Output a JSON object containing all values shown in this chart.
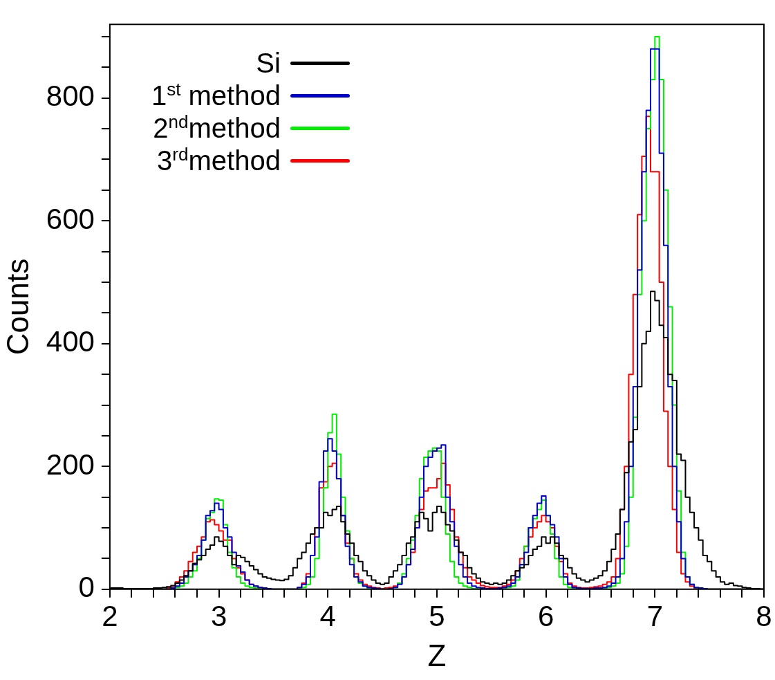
{
  "chart_data": {
    "type": "histogram",
    "xlabel": "Z",
    "ylabel": "Counts",
    "legend": "top left",
    "xlim": [
      2,
      8
    ],
    "ylim": [
      0,
      920
    ],
    "xticks": [
      2,
      {
        "value": 2.2,
        "label": null
      },
      {
        "value": 2.4,
        "label": null
      },
      {
        "value": 2.6,
        "label": null
      },
      {
        "value": 2.8,
        "label": null
      },
      3,
      {
        "value": 3.2,
        "label": null
      },
      {
        "value": 3.4,
        "label": null
      },
      {
        "value": 3.6,
        "label": null
      },
      {
        "value": 3.8,
        "label": null
      },
      4,
      {
        "value": 4.2,
        "label": null
      },
      {
        "value": 4.4,
        "label": null
      },
      {
        "value": 4.6,
        "label": null
      },
      {
        "value": 4.8,
        "label": null
      },
      5,
      {
        "value": 5.2,
        "label": null
      },
      {
        "value": 5.4,
        "label": null
      },
      {
        "value": 5.6,
        "label": null
      },
      {
        "value": 5.8,
        "label": null
      },
      6,
      {
        "value": 6.2,
        "label": null
      },
      {
        "value": 6.4,
        "label": null
      },
      {
        "value": 6.6,
        "label": null
      },
      {
        "value": 6.8,
        "label": null
      },
      7,
      {
        "value": 7.2,
        "label": null
      },
      {
        "value": 7.4,
        "label": null
      },
      {
        "value": 7.6,
        "label": null
      },
      {
        "value": 7.8,
        "label": null
      },
      8
    ],
    "yticks": [
      0,
      {
        "value": 50,
        "label": null
      },
      {
        "value": 100,
        "label": null
      },
      {
        "value": 150,
        "label": null
      },
      200,
      {
        "value": 250,
        "label": null
      },
      {
        "value": 300,
        "label": null
      },
      {
        "value": 350,
        "label": null
      },
      400,
      {
        "value": 450,
        "label": null
      },
      {
        "value": 500,
        "label": null
      },
      {
        "value": 550,
        "label": null
      },
      600,
      {
        "value": 650,
        "label": null
      },
      {
        "value": 700,
        "label": null
      },
      {
        "value": 750,
        "label": null
      },
      800,
      {
        "value": 850,
        "label": null
      },
      {
        "value": 900,
        "label": null
      }
    ],
    "bins": [
      2,
      2.04,
      2.08,
      2.12,
      2.16,
      2.2,
      2.24,
      2.28,
      2.32,
      2.36,
      2.4,
      2.44,
      2.48,
      2.52,
      2.56,
      2.6,
      2.64,
      2.68,
      2.72,
      2.76,
      2.8,
      2.84,
      2.88,
      2.92,
      2.96,
      3,
      3.04,
      3.08,
      3.12,
      3.16,
      3.2,
      3.24,
      3.28,
      3.32,
      3.36,
      3.4,
      3.44,
      3.48,
      3.52,
      3.56,
      3.6,
      3.64,
      3.68,
      3.72,
      3.76,
      3.8,
      3.84,
      3.88,
      3.92,
      3.96,
      4,
      4.04,
      4.08,
      4.12,
      4.16,
      4.2,
      4.24,
      4.28,
      4.32,
      4.36,
      4.4,
      4.44,
      4.48,
      4.52,
      4.56,
      4.6,
      4.64,
      4.68,
      4.72,
      4.76,
      4.8,
      4.84,
      4.88,
      4.92,
      4.96,
      5,
      5.04,
      5.08,
      5.12,
      5.16,
      5.2,
      5.24,
      5.28,
      5.32,
      5.36,
      5.4,
      5.44,
      5.48,
      5.52,
      5.56,
      5.6,
      5.64,
      5.68,
      5.72,
      5.76,
      5.8,
      5.84,
      5.88,
      5.92,
      5.96,
      6,
      6.04,
      6.08,
      6.12,
      6.16,
      6.2,
      6.24,
      6.28,
      6.32,
      6.36,
      6.4,
      6.44,
      6.48,
      6.52,
      6.56,
      6.6,
      6.64,
      6.68,
      6.72,
      6.76,
      6.8,
      6.84,
      6.88,
      6.92,
      6.96,
      7,
      7.04,
      7.08,
      7.12,
      7.16,
      7.2,
      7.24,
      7.28,
      7.32,
      7.36,
      7.4,
      7.44,
      7.48,
      7.52,
      7.56,
      7.6,
      7.64,
      7.68,
      7.72,
      7.76,
      7.8,
      7.84,
      7.88,
      7.92,
      7.96,
      8
    ],
    "series": [
      {
        "name": "Si",
        "color": "#000000",
        "values": [
          2,
          2,
          2,
          1,
          1,
          1,
          1,
          1,
          1,
          1,
          2,
          2,
          3,
          4,
          6,
          10,
          15,
          22,
          30,
          42,
          48,
          55,
          65,
          72,
          85,
          78,
          70,
          55,
          40,
          55,
          52,
          45,
          38,
          32,
          25,
          20,
          18,
          16,
          15,
          14,
          16,
          22,
          35,
          50,
          60,
          75,
          90,
          100,
          100,
          125,
          120,
          130,
          135,
          110,
          90,
          75,
          55,
          45,
          30,
          22,
          15,
          10,
          8,
          10,
          20,
          30,
          40,
          55,
          75,
          85,
          110,
          125,
          115,
          95,
          125,
          135,
          125,
          105,
          95,
          80,
          60,
          55,
          35,
          25,
          18,
          12,
          10,
          8,
          10,
          8,
          10,
          15,
          22,
          30,
          35,
          40,
          55,
          65,
          70,
          85,
          75,
          85,
          75,
          55,
          50,
          35,
          25,
          18,
          15,
          12,
          15,
          18,
          22,
          30,
          45,
          65,
          90,
          130,
          190,
          240,
          260,
          330,
          400,
          420,
          485,
          470,
          430,
          410,
          350,
          340,
          220,
          210,
          150,
          125,
          100,
          80,
          55,
          45,
          30,
          20,
          12,
          8,
          10,
          6,
          5,
          3,
          2,
          1,
          1,
          0
        ]
      },
      {
        "name": "1$^{st}$ method",
        "color": "#0000cc",
        "values": [
          0,
          0,
          0,
          0,
          0,
          0,
          0,
          0,
          0,
          0,
          0,
          0,
          0,
          0,
          2,
          5,
          10,
          20,
          30,
          40,
          55,
          80,
          120,
          128,
          140,
          130,
          100,
          85,
          60,
          38,
          28,
          15,
          8,
          5,
          3,
          2,
          1,
          0,
          0,
          0,
          0,
          0,
          0,
          3,
          8,
          20,
          55,
          85,
          175,
          225,
          245,
          225,
          180,
          120,
          70,
          40,
          20,
          12,
          5,
          3,
          2,
          1,
          0,
          0,
          1,
          3,
          8,
          20,
          40,
          65,
          100,
          150,
          200,
          215,
          225,
          230,
          235,
          150,
          110,
          70,
          40,
          20,
          10,
          5,
          3,
          2,
          1,
          1,
          1,
          2,
          3,
          5,
          10,
          20,
          40,
          60,
          100,
          120,
          140,
          152,
          120,
          105,
          85,
          50,
          20,
          8,
          3,
          2,
          1,
          1,
          1,
          2,
          2,
          3,
          5,
          10,
          20,
          50,
          110,
          200,
          330,
          520,
          680,
          780,
          880,
          880,
          710,
          560,
          330,
          200,
          110,
          50,
          20,
          8,
          3,
          2,
          1,
          0,
          0,
          0,
          0,
          0,
          0,
          0,
          0,
          0,
          0,
          0,
          0,
          0
        ]
      },
      {
        "name": "2$^{nd}$method",
        "color": "#00ee00",
        "values": [
          0,
          0,
          0,
          0,
          0,
          0,
          0,
          0,
          0,
          0,
          0,
          0,
          0,
          0,
          1,
          3,
          5,
          10,
          20,
          30,
          50,
          80,
          115,
          125,
          147,
          145,
          105,
          60,
          35,
          20,
          10,
          5,
          3,
          2,
          1,
          1,
          0,
          0,
          0,
          0,
          0,
          0,
          0,
          1,
          3,
          8,
          20,
          50,
          100,
          165,
          255,
          285,
          220,
          150,
          95,
          50,
          20,
          10,
          5,
          2,
          1,
          0,
          0,
          0,
          1,
          3,
          10,
          25,
          50,
          80,
          120,
          180,
          215,
          225,
          230,
          225,
          150,
          90,
          45,
          20,
          10,
          5,
          3,
          1,
          1,
          0,
          0,
          0,
          0,
          1,
          2,
          3,
          5,
          15,
          40,
          70,
          100,
          115,
          130,
          145,
          120,
          90,
          50,
          20,
          8,
          3,
          2,
          1,
          1,
          0,
          0,
          1,
          1,
          2,
          3,
          5,
          10,
          25,
          70,
          150,
          280,
          480,
          600,
          750,
          830,
          900,
          830,
          650,
          460,
          300,
          160,
          60,
          20,
          8,
          3,
          1,
          0,
          0,
          0,
          0,
          0,
          0,
          0,
          0,
          0,
          0,
          0,
          0,
          0,
          0
        ]
      },
      {
        "name": "3$^{rd}$method",
        "color": "#ff0000",
        "values": [
          0,
          0,
          0,
          0,
          0,
          0,
          0,
          0,
          0,
          0,
          0,
          0,
          0,
          2,
          5,
          12,
          20,
          30,
          45,
          60,
          70,
          85,
          110,
          113,
          105,
          95,
          80,
          80,
          50,
          35,
          25,
          15,
          8,
          5,
          3,
          2,
          1,
          0,
          0,
          0,
          0,
          0,
          0,
          3,
          10,
          25,
          55,
          100,
          165,
          175,
          200,
          205,
          180,
          120,
          75,
          50,
          25,
          15,
          8,
          5,
          3,
          2,
          1,
          2,
          3,
          5,
          10,
          20,
          40,
          60,
          100,
          130,
          160,
          165,
          165,
          180,
          205,
          170,
          130,
          85,
          60,
          35,
          20,
          15,
          10,
          6,
          4,
          3,
          3,
          3,
          5,
          8,
          15,
          30,
          50,
          70,
          85,
          100,
          110,
          120,
          110,
          100,
          70,
          45,
          25,
          10,
          5,
          3,
          2,
          2,
          3,
          4,
          5,
          8,
          12,
          20,
          50,
          130,
          200,
          350,
          480,
          610,
          705,
          770,
          680,
          680,
          500,
          290,
          200,
          130,
          60,
          25,
          12,
          5,
          2,
          1,
          0,
          0,
          0,
          0,
          0,
          0,
          0,
          0,
          0,
          0,
          0,
          0,
          0,
          0
        ]
      }
    ]
  }
}
